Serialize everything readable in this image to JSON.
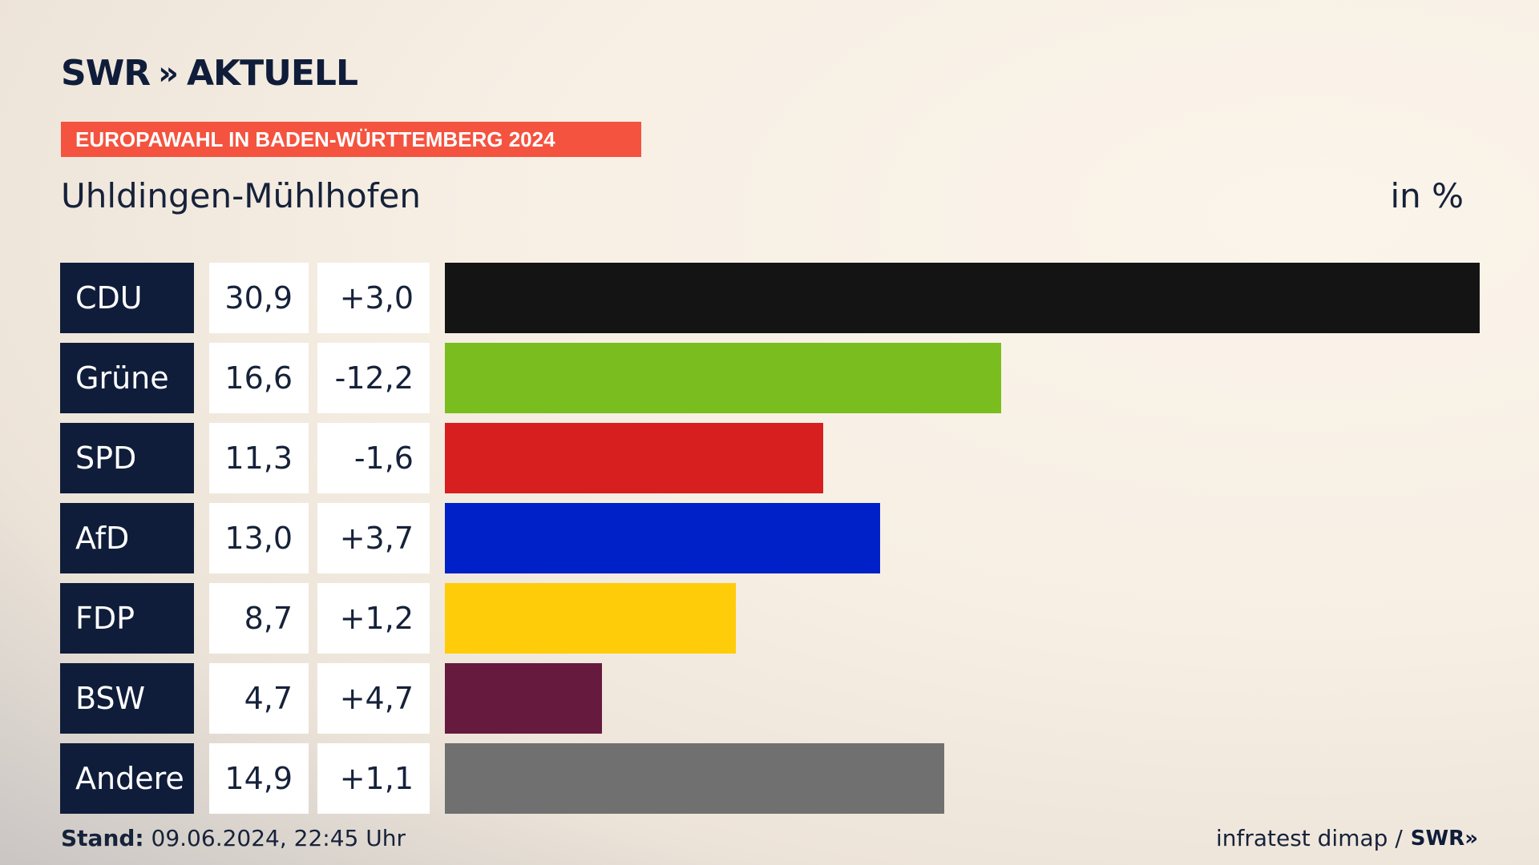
{
  "header": {
    "logo_brand": "SWR",
    "logo_chevrons": "»",
    "logo_word": "AKTUELL",
    "ribbon": "EUROPAWAHL IN BADEN-WÜRTTEMBERG 2024",
    "place": "Uhldingen-Mühlhofen",
    "unit": "in %"
  },
  "footer": {
    "stand_label": "Stand:",
    "stand_value": "09.06.2024, 22:45 Uhr",
    "source": "infratest dimap /",
    "source_brand": "SWR»"
  },
  "chart_data": {
    "type": "bar",
    "orientation": "horizontal",
    "categories": [
      "CDU",
      "Grüne",
      "SPD",
      "AfD",
      "FDP",
      "BSW",
      "Andere"
    ],
    "values": [
      30.9,
      16.6,
      11.3,
      13.0,
      8.7,
      4.7,
      14.9
    ],
    "value_labels": [
      "30,9",
      "16,6",
      "11,3",
      "13,0",
      "8,7",
      "4,7",
      "14,9"
    ],
    "diff_labels": [
      "+3,0",
      "-12,2",
      "-1,6",
      "+3,7",
      "+1,2",
      "+4,7",
      "+1,1"
    ],
    "colors": [
      "#141414",
      "#79be1e",
      "#d71f1f",
      "#0021c8",
      "#ffcc0a",
      "#661a3d",
      "#707070"
    ],
    "xlim": [
      0,
      30.9
    ],
    "title": "Uhldingen-Mühlhofen",
    "unit": "in %"
  }
}
